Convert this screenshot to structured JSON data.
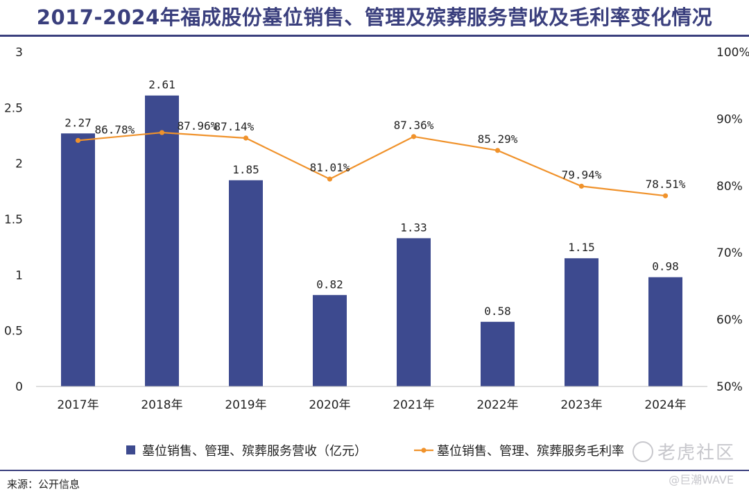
{
  "title": "2017-2024年福成股份墓位销售、管理及殡葬服务营收及毛利率变化情况",
  "source": "来源：公开信息",
  "watermark": {
    "main": "老虎社区",
    "sub": "@巨潮WAVE"
  },
  "colors": {
    "title": "#3a3f7d",
    "bar": "#3d4a8f",
    "line": "#f0922b",
    "rule": "#3a3f7d"
  },
  "chart_data": {
    "type": "bar",
    "categories": [
      "2017年",
      "2018年",
      "2019年",
      "2020年",
      "2021年",
      "2022年",
      "2023年",
      "2024年"
    ],
    "series": [
      {
        "name": "墓位销售、管理、殡葬服务营收（亿元）",
        "type": "bar",
        "axis": "left",
        "values": [
          2.27,
          2.61,
          1.85,
          0.82,
          1.33,
          0.58,
          1.15,
          0.98
        ],
        "labels": [
          "2.27",
          "2.61",
          "1.85",
          "0.82",
          "1.33",
          "0.58",
          "1.15",
          "0.98"
        ]
      },
      {
        "name": "墓位销售、管理、殡葬服务毛利率",
        "type": "line",
        "axis": "right",
        "values": [
          86.78,
          87.96,
          87.14,
          81.01,
          87.36,
          85.29,
          79.94,
          78.51
        ],
        "labels": [
          "86.78%",
          "87.96%",
          "87.14%",
          "81.01%",
          "87.36%",
          "85.29%",
          "79.94%",
          "78.51%"
        ]
      }
    ],
    "y_left": {
      "ylim": [
        0,
        3
      ],
      "ticks": [
        "0",
        "0.5",
        "1",
        "1.5",
        "2",
        "2.5",
        "3"
      ]
    },
    "y_right": {
      "ylim": [
        50,
        100
      ],
      "ticks": [
        "50%",
        "60%",
        "70%",
        "80%",
        "90%",
        "100%"
      ]
    },
    "grid": false,
    "legend": "bottom"
  }
}
